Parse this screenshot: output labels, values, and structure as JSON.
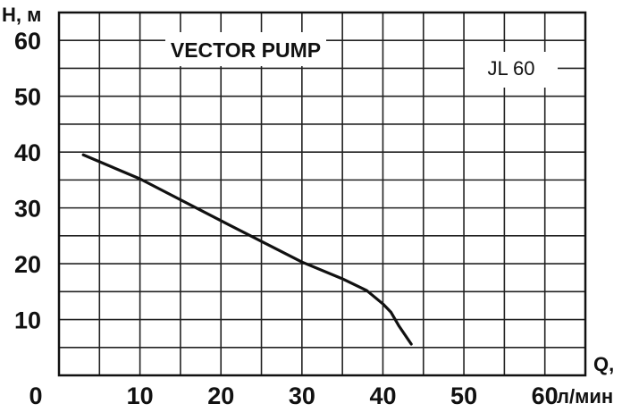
{
  "chart_data": {
    "type": "line",
    "title": "VECTOR PUMP",
    "model": "JL 60",
    "ylabel": "H, м",
    "xlabel_line1": "Q,",
    "xlabel_line2": "л/мин",
    "xlim": [
      0,
      65
    ],
    "ylim": [
      0,
      65
    ],
    "x_ticks": [
      0,
      10,
      20,
      30,
      40,
      50,
      60
    ],
    "y_ticks": [
      10,
      20,
      30,
      40,
      50,
      60
    ],
    "grid": true,
    "series": [
      {
        "color": "#111111",
        "x": [
          3,
          10,
          20,
          30,
          35,
          38,
          40,
          41,
          42,
          43.5
        ],
        "y": [
          39.5,
          35.2,
          27.7,
          20.3,
          17.3,
          15.2,
          12.8,
          11.3,
          8.8,
          5.6
        ]
      }
    ]
  }
}
